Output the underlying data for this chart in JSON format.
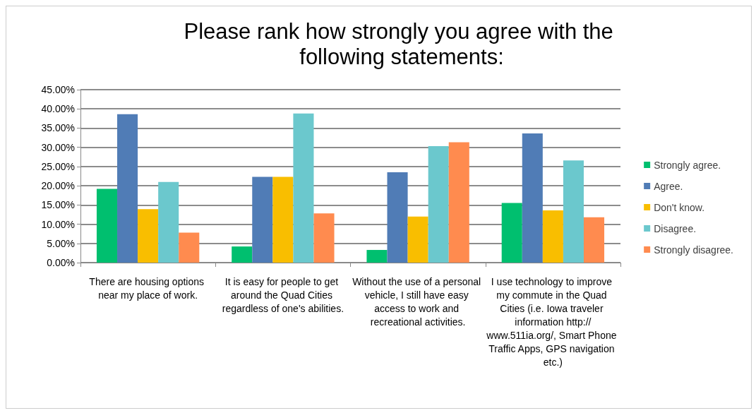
{
  "chart_data": {
    "type": "bar",
    "title": "Please rank how strongly you agree with the following statements:",
    "categories": [
      "There are housing options near my place of work.",
      "It is easy for people to get around the Quad Cities regardless of one's abilities.",
      "Without the use of a personal vehicle, I still have easy access to work and recreational activities.",
      "I use technology to improve my commute in the Quad Cities (i.e. Iowa traveler information http://www.511ia.org/, Smart Phone Traffic Apps, GPS navigation etc.)"
    ],
    "series": [
      {
        "name": "Strongly agree.",
        "color": "#00bf6f",
        "values": [
          19.2,
          4.2,
          3.3,
          15.5
        ]
      },
      {
        "name": "Agree.",
        "color": "#507cb6",
        "values": [
          38.6,
          22.3,
          23.5,
          33.6
        ]
      },
      {
        "name": "Don't know.",
        "color": "#f9be00",
        "values": [
          13.9,
          22.3,
          12.0,
          13.6
        ]
      },
      {
        "name": "Disagree.",
        "color": "#6bc8cd",
        "values": [
          21.0,
          38.8,
          30.3,
          26.6
        ]
      },
      {
        "name": "Strongly disagree.",
        "color": "#ff8b4f",
        "values": [
          7.8,
          12.8,
          31.3,
          11.8
        ]
      }
    ],
    "ylim": [
      0,
      45
    ],
    "yticks": [
      {
        "value": 0,
        "label": "0.00%"
      },
      {
        "value": 5,
        "label": "5.00%"
      },
      {
        "value": 10,
        "label": "10.00%"
      },
      {
        "value": 15,
        "label": "15.00%"
      },
      {
        "value": 20,
        "label": "20.00%"
      },
      {
        "value": 25,
        "label": "25.00%"
      },
      {
        "value": 30,
        "label": "30.00%"
      },
      {
        "value": 35,
        "label": "35.00%"
      },
      {
        "value": 40,
        "label": "40.00%"
      },
      {
        "value": 45,
        "label": "45.00%"
      }
    ],
    "grid": "y",
    "legend": "right"
  }
}
